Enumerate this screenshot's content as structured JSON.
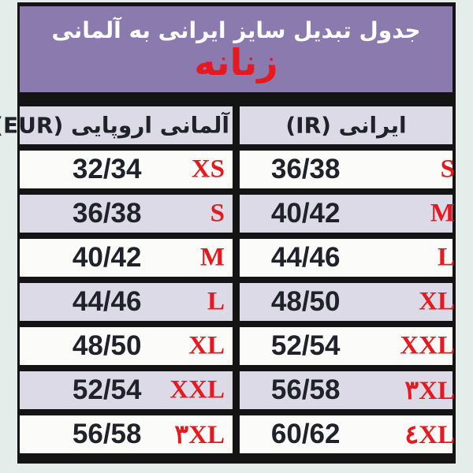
{
  "header": {
    "title": "جدول تبدیل سایز ایرانی به آلمانی",
    "subtitle": "زنانه"
  },
  "table": {
    "columns": [
      {
        "id": "ir",
        "label": "ایرانی (IR)"
      },
      {
        "id": "eur",
        "label": "آلمانی اروپایی (EUR)"
      }
    ],
    "rows": [
      {
        "eur_value": "32/34",
        "eur_size": "XS",
        "ir_value": "36/38",
        "ir_size": "S"
      },
      {
        "eur_value": "36/38",
        "eur_size": "S",
        "ir_value": "40/42",
        "ir_size": "M"
      },
      {
        "eur_value": "40/42",
        "eur_size": "M",
        "ir_value": "44/46",
        "ir_size": "L"
      },
      {
        "eur_value": "44/46",
        "eur_size": "L",
        "ir_value": "48/50",
        "ir_size": "XL"
      },
      {
        "eur_value": "48/50",
        "eur_size": "XL",
        "ir_value": "52/54",
        "ir_size": "XXL"
      },
      {
        "eur_value": "52/54",
        "eur_size": "XXL",
        "ir_value": "56/58",
        "ir_size": "۳XL"
      },
      {
        "eur_value": "56/58",
        "eur_size": "۳XL",
        "ir_value": "60/62",
        "ir_size": "٤XL"
      }
    ]
  },
  "colors": {
    "page_background": "#e4ede9",
    "banner_background": "#8a7aae",
    "banner_title": "#ffffff",
    "accent_red": "#e6191f",
    "row_alt_background": "#dcdae6",
    "row_background": "#fbfbf9",
    "border_black": "#141414",
    "text_dark": "#21212b"
  }
}
